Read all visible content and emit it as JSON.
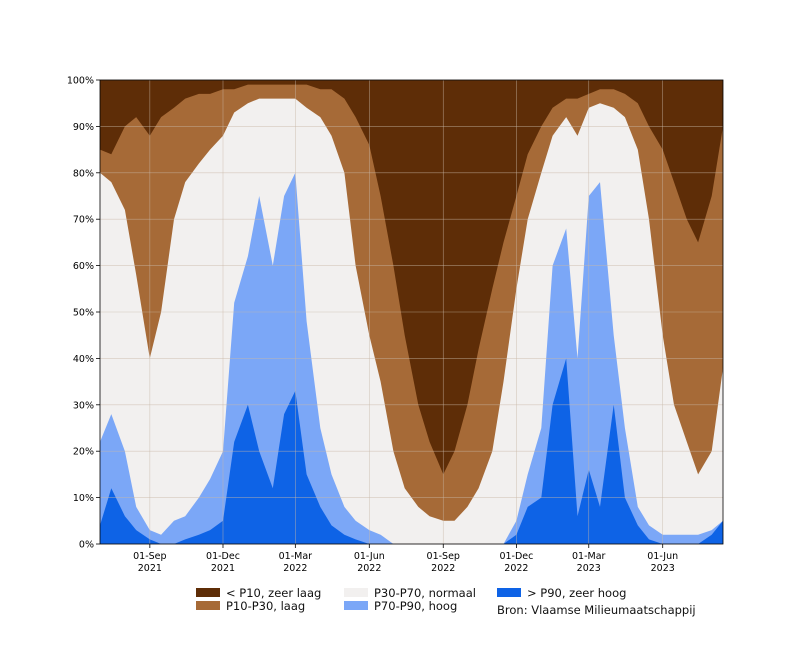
{
  "chart_data": {
    "type": "area",
    "stacked": true,
    "x_ticks": [
      {
        "date": "2021-09-01",
        "label1": "01-Sep",
        "label2": "2021"
      },
      {
        "date": "2021-12-01",
        "label1": "01-Dec",
        "label2": "2021"
      },
      {
        "date": "2022-03-01",
        "label1": "01-Mar",
        "label2": "2022"
      },
      {
        "date": "2022-06-01",
        "label1": "01-Jun",
        "label2": "2022"
      },
      {
        "date": "2022-09-01",
        "label1": "01-Sep",
        "label2": "2022"
      },
      {
        "date": "2022-12-01",
        "label1": "01-Dec",
        "label2": "2022"
      },
      {
        "date": "2023-03-01",
        "label1": "01-Mar",
        "label2": "2023"
      },
      {
        "date": "2023-06-01",
        "label1": "01-Jun",
        "label2": "2023"
      }
    ],
    "x_range": [
      "2021-07-01",
      "2023-08-15"
    ],
    "y_ticks": [
      "0%",
      "10%",
      "20%",
      "30%",
      "40%",
      "50%",
      "60%",
      "70%",
      "80%",
      "90%",
      "100%"
    ],
    "ylim": [
      0,
      100
    ],
    "grid": true,
    "legend_position": "below",
    "series_colors": [
      "#0e63e6",
      "#7ba7f7",
      "#f2f0ef",
      "#a66a37",
      "#5e2d07"
    ],
    "x": [
      "2021-07-01",
      "2021-07-15",
      "2021-08-01",
      "2021-08-15",
      "2021-09-01",
      "2021-09-15",
      "2021-10-01",
      "2021-10-15",
      "2021-11-01",
      "2021-11-15",
      "2021-12-01",
      "2021-12-15",
      "2022-01-01",
      "2022-01-15",
      "2022-02-01",
      "2022-02-15",
      "2022-03-01",
      "2022-03-15",
      "2022-04-01",
      "2022-04-15",
      "2022-05-01",
      "2022-05-15",
      "2022-06-01",
      "2022-06-15",
      "2022-07-01",
      "2022-07-15",
      "2022-08-01",
      "2022-08-15",
      "2022-09-01",
      "2022-09-15",
      "2022-10-01",
      "2022-10-15",
      "2022-11-01",
      "2022-11-15",
      "2022-12-01",
      "2022-12-15",
      "2023-01-01",
      "2023-01-15",
      "2023-02-01",
      "2023-02-15",
      "2023-03-01",
      "2023-03-15",
      "2023-04-01",
      "2023-04-15",
      "2023-05-01",
      "2023-05-15",
      "2023-06-01",
      "2023-06-15",
      "2023-07-01",
      "2023-07-15",
      "2023-08-01",
      "2023-08-15"
    ],
    "cumulative_levels": [
      {
        "name": "> P90, zeer hoog",
        "values": [
          4,
          12,
          6,
          3,
          1,
          0,
          0,
          1,
          2,
          3,
          5,
          22,
          30,
          20,
          12,
          28,
          33,
          15,
          8,
          4,
          2,
          1,
          0,
          0,
          0,
          0,
          0,
          0,
          0,
          0,
          0,
          0,
          0,
          0,
          2,
          8,
          10,
          30,
          40,
          6,
          16,
          8,
          30,
          10,
          4,
          1,
          0,
          0,
          0,
          0,
          2,
          5
        ]
      },
      {
        "name": "P70-P90, hoog",
        "values": [
          22,
          28,
          20,
          8,
          3,
          2,
          5,
          6,
          10,
          14,
          20,
          52,
          62,
          75,
          60,
          75,
          80,
          48,
          25,
          15,
          8,
          5,
          3,
          2,
          0,
          0,
          0,
          0,
          0,
          0,
          0,
          0,
          0,
          0,
          5,
          15,
          25,
          60,
          68,
          40,
          75,
          78,
          45,
          25,
          8,
          4,
          2,
          2,
          2,
          2,
          3,
          5
        ]
      },
      {
        "name": "P30-P70, normaal",
        "values": [
          80,
          78,
          72,
          58,
          40,
          50,
          70,
          78,
          82,
          85,
          88,
          93,
          95,
          96,
          96,
          96,
          96,
          94,
          92,
          88,
          80,
          60,
          45,
          35,
          20,
          12,
          8,
          6,
          5,
          5,
          8,
          12,
          20,
          35,
          55,
          70,
          80,
          88,
          92,
          88,
          94,
          95,
          94,
          92,
          85,
          70,
          45,
          30,
          22,
          15,
          20,
          38
        ]
      },
      {
        "name": "P10-P30, laag",
        "values": [
          85,
          84,
          90,
          92,
          88,
          92,
          94,
          96,
          97,
          97,
          98,
          98,
          99,
          99,
          99,
          99,
          99,
          99,
          98,
          98,
          96,
          92,
          86,
          75,
          60,
          45,
          30,
          22,
          15,
          20,
          30,
          42,
          55,
          65,
          75,
          84,
          90,
          94,
          96,
          96,
          97,
          98,
          98,
          97,
          95,
          90,
          85,
          78,
          70,
          65,
          75,
          90
        ]
      }
    ],
    "legend": [
      {
        "label": "< P10, zeer laag",
        "color": "#5e2d07"
      },
      {
        "label": "P10-P30, laag",
        "color": "#a66a37"
      },
      {
        "label": "P30-P70, normaal",
        "color": "#f2f0ef"
      },
      {
        "label": "P70-P90, hoog",
        "color": "#7ba7f7"
      },
      {
        "label": "> P90, zeer hoog",
        "color": "#0e63e6"
      }
    ],
    "source": "Bron: Vlaamse Milieumaatschappij"
  }
}
